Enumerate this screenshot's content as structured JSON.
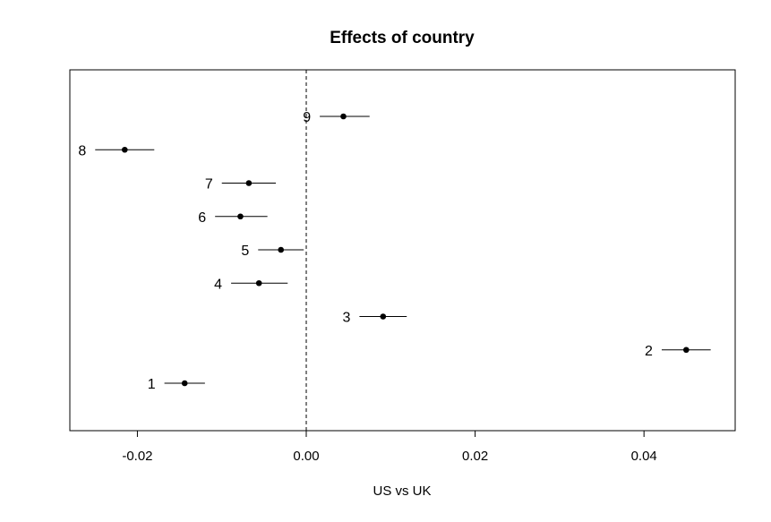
{
  "chart_data": {
    "type": "scatter",
    "title": "Effects of country",
    "xlabel": "US vs UK",
    "ylabel": "",
    "xlim": [
      -0.028,
      0.0508
    ],
    "reference_line": {
      "x": 0.0,
      "style": "dashed"
    },
    "x_ticks": [
      {
        "value": -0.02,
        "label": "-0.02"
      },
      {
        "value": 0.0,
        "label": "0.00"
      },
      {
        "value": 0.02,
        "label": "0.02"
      },
      {
        "value": 0.04,
        "label": "0.04"
      }
    ],
    "points": [
      {
        "label": "1",
        "estimate": -0.0144,
        "lower": -0.0168,
        "upper": -0.012
      },
      {
        "label": "2",
        "estimate": 0.045,
        "lower": 0.0421,
        "upper": 0.0479
      },
      {
        "label": "3",
        "estimate": 0.0091,
        "lower": 0.0063,
        "upper": 0.0119
      },
      {
        "label": "4",
        "estimate": -0.0056,
        "lower": -0.0089,
        "upper": -0.0022
      },
      {
        "label": "5",
        "estimate": -0.003,
        "lower": -0.0057,
        "upper": -0.0003
      },
      {
        "label": "6",
        "estimate": -0.0078,
        "lower": -0.0108,
        "upper": -0.0046
      },
      {
        "label": "7",
        "estimate": -0.0068,
        "lower": -0.01,
        "upper": -0.0036
      },
      {
        "label": "8",
        "estimate": -0.0215,
        "lower": -0.025,
        "upper": -0.018
      },
      {
        "label": "9",
        "estimate": 0.0044,
        "lower": 0.0016,
        "upper": 0.0075
      }
    ],
    "grid": false,
    "legend": "none"
  }
}
